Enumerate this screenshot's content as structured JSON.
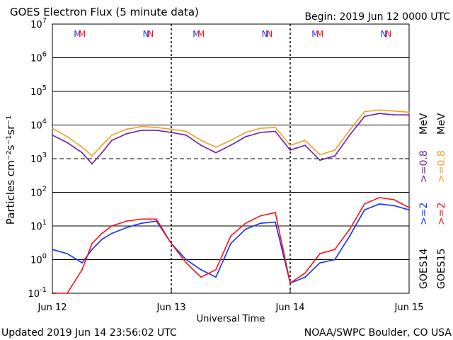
{
  "header": {
    "title": "GOES Electron Flux (5 minute data)",
    "begin": "Begin: 2019 Jun 12 0000 UTC"
  },
  "footer": {
    "updated": "Updated 2019 Jun 14 23:56:02 UTC",
    "credit": "NOAA/SWPC Boulder, CO USA"
  },
  "axis": {
    "xlabel": "Universal Time",
    "ylabel": "Particles cm⁻²s⁻¹sr⁻¹",
    "y_ticks": [
      {
        "base": "10",
        "exp": "7"
      },
      {
        "base": "10",
        "exp": "6"
      },
      {
        "base": "10",
        "exp": "5"
      },
      {
        "base": "10",
        "exp": "4"
      },
      {
        "base": "10",
        "exp": "3"
      },
      {
        "base": "10",
        "exp": "2"
      },
      {
        "base": "10",
        "exp": "1"
      },
      {
        "base": "10",
        "exp": "0"
      },
      {
        "base": "10",
        "exp": "-1"
      }
    ],
    "x_ticks": [
      "Jun 12",
      "Jun 13",
      "Jun 14",
      "Jun 15"
    ]
  },
  "markers": [
    {
      "day": 0,
      "M": [
        "M",
        "M"
      ],
      "N": [
        "N",
        "N"
      ]
    },
    {
      "day": 1,
      "M": [
        "M",
        "M"
      ],
      "N": [
        "N",
        "N"
      ]
    },
    {
      "day": 2,
      "M": [
        "M",
        "M"
      ],
      "N": [
        "N",
        "N"
      ]
    }
  ],
  "legend": {
    "right_upper": [
      {
        "text": "GOES14 >=0.8 MeV",
        "color": "#6a1bb0"
      },
      {
        "text": "GOES15 >=0.8 MeV",
        "color": "#f0a020"
      }
    ],
    "ge08_a": ">=0.8",
    "mev_a": "MeV",
    "ge08_b": ">=0.8",
    "mev_b": "MeV",
    "ge2_a": ">=2",
    "ge2_b": ">=2",
    "goes14": "GOES14",
    "goes15": "GOES15"
  },
  "colors": {
    "goes14_08": "#6a1bb0",
    "goes15_08": "#f0a020",
    "goes14_2": "#1030ff",
    "goes15_2": "#ff1010",
    "marker_m_a": "#1030ff",
    "marker_m_b": "#ff1010",
    "marker_n_a": "#1030ff",
    "marker_n_b": "#ff1010"
  },
  "chart_data": {
    "type": "line",
    "title": "GOES Electron Flux (5 minute data)",
    "xlabel": "Universal Time",
    "ylabel": "Particles cm-2 s-1 sr-1",
    "yscale": "log",
    "ylim": [
      0.1,
      10000000
    ],
    "xlim": [
      "2019-06-12 00:00",
      "2019-06-15 00:00"
    ],
    "x": [
      "2019-06-12 00:00",
      "2019-06-12 03:00",
      "2019-06-12 06:00",
      "2019-06-12 08:00",
      "2019-06-12 10:00",
      "2019-06-12 12:00",
      "2019-06-12 15:00",
      "2019-06-12 18:00",
      "2019-06-12 21:00",
      "2019-06-13 00:00",
      "2019-06-13 03:00",
      "2019-06-13 06:00",
      "2019-06-13 09:00",
      "2019-06-13 12:00",
      "2019-06-13 15:00",
      "2019-06-13 18:00",
      "2019-06-13 21:00",
      "2019-06-14 00:00",
      "2019-06-14 03:00",
      "2019-06-14 06:00",
      "2019-06-14 09:00",
      "2019-06-14 12:00",
      "2019-06-14 15:00",
      "2019-06-14 18:00",
      "2019-06-14 21:00",
      "2019-06-15 00:00"
    ],
    "series": [
      {
        "name": "GOES14 >=0.8 MeV",
        "values": [
          5000,
          3000,
          1500,
          700,
          1500,
          3500,
          5500,
          7000,
          7000,
          6000,
          5000,
          2500,
          1500,
          2500,
          4500,
          6000,
          6500,
          1800,
          2500,
          900,
          1200,
          5000,
          18000,
          22000,
          20000,
          20000
        ]
      },
      {
        "name": "GOES15 >=0.8 MeV",
        "values": [
          8000,
          4500,
          2200,
          1200,
          2500,
          5000,
          7500,
          9000,
          8500,
          7500,
          6500,
          3500,
          2200,
          3500,
          6000,
          8000,
          8500,
          2500,
          3500,
          1300,
          1800,
          7000,
          25000,
          28000,
          26000,
          24000
        ]
      },
      {
        "name": "GOES14 >=2",
        "values": [
          2,
          1.5,
          0.8,
          2,
          4,
          6,
          9,
          12,
          14,
          3,
          1,
          0.5,
          0.3,
          3,
          8,
          12,
          13,
          0.2,
          0.3,
          0.8,
          1,
          5,
          30,
          45,
          40,
          30
        ]
      },
      {
        "name": "GOES15 >=2",
        "values": [
          0.1,
          0.1,
          0.5,
          3,
          6,
          10,
          14,
          16,
          16,
          3,
          0.8,
          0.3,
          0.5,
          5,
          12,
          20,
          25,
          0.2,
          0.4,
          1.5,
          2,
          8,
          45,
          70,
          60,
          35
        ]
      }
    ],
    "grid": true,
    "reference_lines": [
      1000
    ]
  }
}
